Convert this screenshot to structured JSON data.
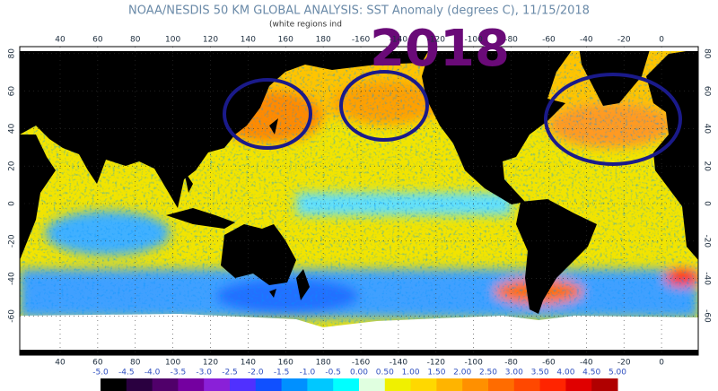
{
  "header": {
    "title": "NOAA/NESDIS 50 KM GLOBAL ANALYSIS: SST Anomaly (degrees C), 11/15/2018",
    "subtitle": "(white regions ind"
  },
  "annotation": "2018",
  "map": {
    "lon_ticks": [
      40,
      60,
      80,
      100,
      120,
      140,
      160,
      180,
      -160,
      -140,
      -120,
      -100,
      -80,
      -60,
      -40,
      -20,
      0
    ],
    "lat_ticks": [
      80,
      60,
      40,
      20,
      0,
      -20,
      -40,
      -60
    ]
  },
  "colorbar": {
    "ticks": [
      {
        "value": -5,
        "label": "-5.0"
      },
      -4.5,
      {
        "value": -4,
        "label": "-4.0"
      },
      -3.5,
      {
        "value": -3,
        "label": "-3.0"
      },
      -2.5,
      {
        "value": -2,
        "label": "-2.0"
      },
      -1.5,
      {
        "value": -1,
        "label": "-1.0"
      },
      -0.5,
      {
        "value": 0,
        "label": "0.00"
      },
      {
        "value": 0.5,
        "label": "0.50"
      },
      {
        "value": 1,
        "label": "1.00"
      },
      {
        "value": 1.5,
        "label": "1.50"
      },
      {
        "value": 2,
        "label": "2.00"
      },
      {
        "value": 2.5,
        "label": "2.50"
      },
      {
        "value": 3,
        "label": "3.00"
      },
      {
        "value": 3.5,
        "label": "3.50"
      },
      {
        "value": 4,
        "label": "4.00"
      },
      {
        "value": 4.5,
        "label": "4.50"
      },
      {
        "value": 5,
        "label": "5.00"
      }
    ],
    "colors": [
      "#000000",
      "#2a0040",
      "#50006a",
      "#7400a0",
      "#8a20d8",
      "#5030ff",
      "#1050ff",
      "#0090ff",
      "#00c8ff",
      "#00ffff",
      "#e0ffe0",
      "#f0f000",
      "#ffd800",
      "#ffb400",
      "#ff9000",
      "#ff6c00",
      "#ff4800",
      "#ff2400",
      "#e00000",
      "#b00000"
    ]
  }
}
